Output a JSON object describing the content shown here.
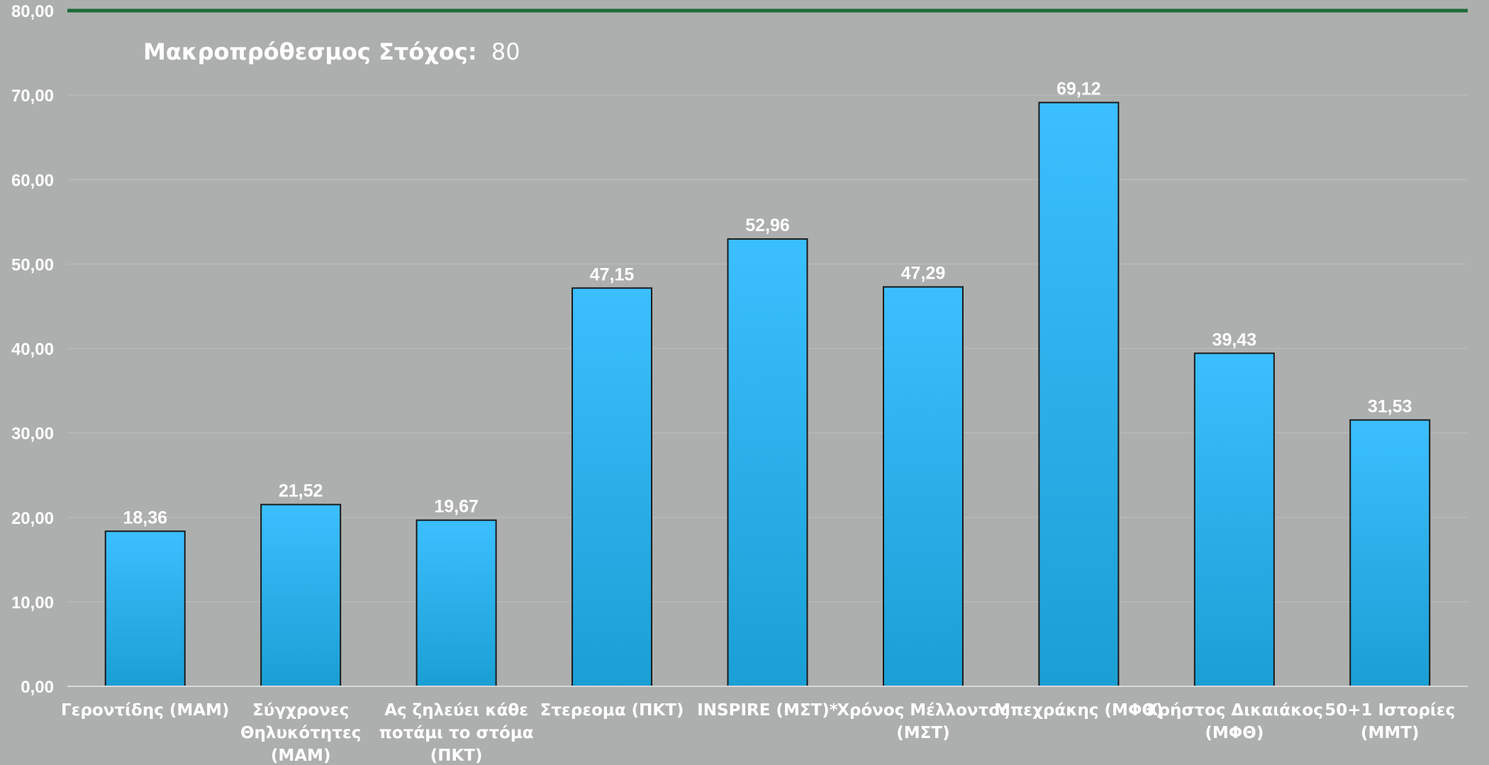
{
  "chart_data": {
    "type": "bar",
    "categories": [
      "Γεροντίδης (ΜΑΜ)",
      "Σύγχρονες Θηλυκότητες (ΜΑΜ)",
      "Ας ζηλεύει κάθε ποτάμι το στόμα (ΠΚΤ)",
      "Στερεομα (ΠΚΤ)",
      "INSPIRE (ΜΣΤ)*",
      "Χρόνος Μέλλοντος (ΜΣΤ)",
      "Μπεχράκης (ΜΦΘ)",
      "Χρήστος Δικαιάκος (ΜΦΘ)",
      "50+1 Ιστορίες (ΜΜΤ)"
    ],
    "category_lines": [
      [
        "Γεροντίδης (ΜΑΜ)"
      ],
      [
        "Σύγχρονες",
        "Θηλυκότητες",
        "(ΜΑΜ)"
      ],
      [
        "Ας ζηλεύει κάθε",
        "ποτάμι το στόμα",
        "(ΠΚΤ)"
      ],
      [
        "Στερεομα (ΠΚΤ)"
      ],
      [
        "INSPIRE (ΜΣΤ)*"
      ],
      [
        "Χρόνος Μέλλοντος",
        "(ΜΣΤ)"
      ],
      [
        "Μπεχράκης (ΜΦΘ)"
      ],
      [
        "Χρήστος Δικαιάκος",
        "(ΜΦΘ)"
      ],
      [
        "50+1 Ιστορίες",
        "(ΜΜΤ)"
      ]
    ],
    "values": [
      18.36,
      21.52,
      19.67,
      47.15,
      52.96,
      47.29,
      69.12,
      39.43,
      31.53
    ],
    "value_labels": [
      "18,36",
      "21,52",
      "19,67",
      "47,15",
      "52,96",
      "47,29",
      "69,12",
      "39,43",
      "31,53"
    ],
    "ylim": [
      0,
      80
    ],
    "yticks": [
      0,
      10,
      20,
      30,
      40,
      50,
      60,
      70,
      80
    ],
    "ytick_labels": [
      "0,00",
      "10,00",
      "20,00",
      "30,00",
      "40,00",
      "50,00",
      "60,00",
      "70,00",
      "80,00"
    ],
    "target": {
      "label": "Μακροπρόθεσμος Στόχος:",
      "value": 80,
      "value_text": "80",
      "color": "#1e6b3a"
    },
    "grid": true,
    "legend": "none",
    "colors": {
      "background": "#acafae",
      "bar_light": "#3bbfff",
      "bar_dark": "#1a9fd4",
      "bar_border": "#1a1a1a",
      "gridline": "#bcbfbe",
      "text": "#ffffff"
    }
  }
}
